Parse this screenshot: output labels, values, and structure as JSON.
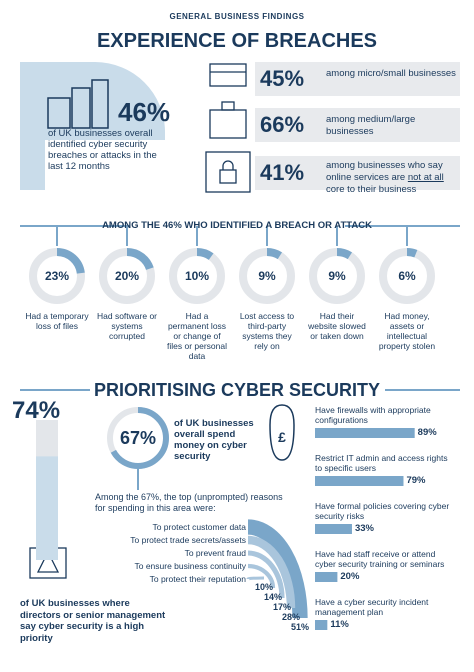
{
  "header": {
    "kicker": "GENERAL BUSINESS FINDINGS",
    "title": "EXPERIENCE OF BREACHES"
  },
  "headline": {
    "value": 46,
    "label": "46%",
    "text": "of UK businesses overall identified cyber security breaches or attacks in the last 12 months"
  },
  "segments": [
    {
      "value": 45,
      "label": "45%",
      "text": "among micro/small businesses"
    },
    {
      "value": 66,
      "label": "66%",
      "text": "among medium/large businesses"
    },
    {
      "value": 41,
      "label": "41%",
      "text_before": "among businesses who say online services are",
      "text_emphasis": "not at all",
      "text_after": "core to their business"
    }
  ],
  "breach_types": {
    "title": "AMONG THE 46% WHO IDENTIFIED A BREACH OR ATTACK",
    "items": [
      {
        "value": 23,
        "label": "23%",
        "text": "Had a temporary loss of files"
      },
      {
        "value": 20,
        "label": "20%",
        "text": "Had software or systems corrupted"
      },
      {
        "value": 10,
        "label": "10%",
        "text": "Had a permanent loss or change of files or personal data"
      },
      {
        "value": 9,
        "label": "9%",
        "text": "Lost access to third-party systems they rely on"
      },
      {
        "value": 9,
        "label": "9%",
        "text": "Had their website slowed or taken down"
      },
      {
        "value": 6,
        "label": "6%",
        "text": "Had money, assets or intellectual property stolen"
      }
    ]
  },
  "priority": {
    "title": "PRIORITISING CYBER SECURITY",
    "headline": {
      "value": 74,
      "label": "74%",
      "text": "of UK businesses where directors or senior management say cyber security is a high priority"
    },
    "spend": {
      "value": 67,
      "label": "67%",
      "text": "of UK businesses overall spend money on cyber security"
    },
    "reasons": {
      "intro": "Among the 67%, the top (unprompted) reasons for spending in this area were:",
      "items": [
        {
          "text": "To protect customer data",
          "value": 51,
          "label": "51%"
        },
        {
          "text": "To protect trade secrets/assets",
          "value": 28,
          "label": "28%"
        },
        {
          "text": "To prevent fraud",
          "value": 17,
          "label": "17%"
        },
        {
          "text": "To ensure business continuity",
          "value": 14,
          "label": "14%"
        },
        {
          "text": "To protect their reputation",
          "value": 10,
          "label": "10%"
        }
      ]
    },
    "measures": [
      {
        "text": "Have firewalls with appropriate configurations",
        "value": 89,
        "label": "89%"
      },
      {
        "text": "Restrict IT admin and access rights to specific users",
        "value": 79,
        "label": "79%"
      },
      {
        "text": "Have formal policies covering cyber security risks",
        "value": 33,
        "label": "33%"
      },
      {
        "text": "Have had staff receive or attend cyber security training or seminars",
        "value": 20,
        "label": "20%"
      },
      {
        "text": "Have a cyber security incident management plan",
        "value": 11,
        "label": "11%"
      }
    ]
  }
}
